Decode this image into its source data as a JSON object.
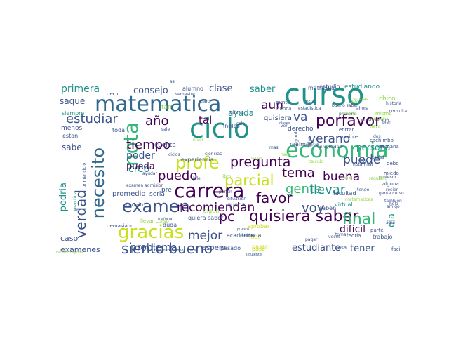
{
  "palette": {
    "dark_purple": "#440154",
    "indigo": "#3b528b",
    "blue": "#31688e",
    "teal": "#21918c",
    "green": "#35b779",
    "lime": "#90d743",
    "yellow": "#c8e020"
  },
  "words": [
    {
      "text": "curso",
      "color": "teal"
    },
    {
      "text": "matematica",
      "color": "blue"
    },
    {
      "text": "ciclo",
      "color": "teal"
    },
    {
      "text": "economia",
      "color": "green"
    },
    {
      "text": "carrera",
      "color": "dark_purple"
    },
    {
      "text": "gracias",
      "color": "yellow"
    },
    {
      "text": "nota",
      "color": "green"
    },
    {
      "text": "necesito",
      "color": "blue"
    },
    {
      "text": "examen",
      "color": "indigo"
    },
    {
      "text": "siento bueno",
      "color": "indigo"
    },
    {
      "text": "quisiera saber",
      "color": "dark_purple"
    },
    {
      "text": "profe",
      "color": "yellow"
    },
    {
      "text": "pregunta",
      "color": "dark_purple"
    },
    {
      "text": "parcial",
      "color": "yellow"
    },
    {
      "text": "porfavor",
      "color": "dark_purple"
    },
    {
      "text": "verano",
      "color": "indigo"
    },
    {
      "text": "final",
      "color": "green"
    },
    {
      "text": "verdad",
      "color": "indigo"
    },
    {
      "text": "tiempo",
      "color": "dark_purple"
    },
    {
      "text": "estudiar",
      "color": "indigo"
    },
    {
      "text": "recomiendan",
      "color": "dark_purple"
    },
    {
      "text": "gente",
      "color": "green"
    },
    {
      "text": "favor",
      "color": "dark_purple"
    },
    {
      "text": "voy",
      "color": "indigo"
    },
    {
      "text": "puedo",
      "color": "dark_purple"
    },
    {
      "text": "llevar",
      "color": "teal"
    },
    {
      "text": "tema",
      "color": "dark_purple"
    },
    {
      "text": "buena",
      "color": "dark_purple"
    },
    {
      "text": "mejor",
      "color": "indigo"
    },
    {
      "text": "pc",
      "color": "dark_purple"
    },
    {
      "text": "puede",
      "color": "indigo"
    },
    {
      "text": "año",
      "color": "dark_purple"
    },
    {
      "text": "va",
      "color": "indigo"
    },
    {
      "text": "aun",
      "color": "dark_purple"
    },
    {
      "text": "primera",
      "color": "teal"
    },
    {
      "text": "consejo",
      "color": "indigo"
    },
    {
      "text": "clase",
      "color": "indigo"
    },
    {
      "text": "saber",
      "color": "teal"
    },
    {
      "text": "persona",
      "color": "teal"
    },
    {
      "text": "ayuda",
      "color": "teal"
    },
    {
      "text": "tal",
      "color": "dark_purple"
    },
    {
      "text": "estudiante",
      "color": "indigo"
    },
    {
      "text": "problema",
      "color": "indigo"
    },
    {
      "text": "dificil",
      "color": "dark_purple"
    },
    {
      "text": "tener",
      "color": "indigo"
    },
    {
      "text": "poder",
      "color": "indigo"
    },
    {
      "text": "creo",
      "color": "teal"
    },
    {
      "text": "pueda",
      "color": "dark_purple"
    },
    {
      "text": "dia",
      "color": "teal"
    },
    {
      "text": "podria",
      "color": "teal"
    },
    {
      "text": "sabe",
      "color": "indigo"
    },
    {
      "text": "saque",
      "color": "indigo"
    },
    {
      "text": "caso",
      "color": "indigo"
    },
    {
      "text": "examenes",
      "color": "indigo"
    },
    {
      "text": "promedio",
      "color": "indigo"
    },
    {
      "text": "seria",
      "color": "indigo"
    },
    {
      "text": "quisiera",
      "color": "indigo"
    },
    {
      "text": "derecho",
      "color": "indigo"
    },
    {
      "text": "estudio",
      "color": "indigo"
    },
    {
      "text": "estudiando",
      "color": "teal"
    },
    {
      "text": "matricula",
      "color": "indigo"
    },
    {
      "text": "alumno",
      "color": "indigo"
    },
    {
      "text": "facultad",
      "color": "indigo"
    },
    {
      "text": "trabajo",
      "color": "indigo"
    },
    {
      "text": "saben",
      "color": "indigo"
    },
    {
      "text": "virtual",
      "color": "teal"
    },
    {
      "text": "cuenta",
      "color": "indigo"
    },
    {
      "text": "pasado",
      "color": "indigo"
    },
    {
      "text": "espero",
      "color": "indigo"
    },
    {
      "text": "menos",
      "color": "indigo"
    },
    {
      "text": "siempre",
      "color": "teal"
    },
    {
      "text": "estan",
      "color": "indigo"
    },
    {
      "text": "toda",
      "color": "indigo"
    },
    {
      "text": "pre",
      "color": "indigo"
    },
    {
      "text": "duda",
      "color": "indigo"
    },
    {
      "text": "mal",
      "color": "yellow"
    },
    {
      "text": "pase",
      "color": "yellow"
    },
    {
      "text": "pasar",
      "color": "yellow"
    },
    {
      "text": "aprobar",
      "color": "yellow"
    },
    {
      "text": "algun",
      "color": "lime"
    },
    {
      "text": "quiera saber",
      "color": "indigo"
    },
    {
      "text": "academia",
      "color": "indigo"
    },
    {
      "text": "deberia",
      "color": "indigo"
    },
    {
      "text": "experiencia",
      "color": "indigo"
    },
    {
      "text": "realmente",
      "color": "indigo"
    },
    {
      "text": "posible",
      "color": "indigo"
    },
    {
      "text": "ingles",
      "color": "indigo"
    },
    {
      "text": "punto",
      "color": "indigo"
    },
    {
      "text": "nunca",
      "color": "indigo"
    },
    {
      "text": "chico",
      "color": "lime"
    },
    {
      "text": "cachimbo",
      "color": "indigo"
    },
    {
      "text": "semana",
      "color": "indigo"
    },
    {
      "text": "entrar",
      "color": "indigo"
    },
    {
      "text": "miedo",
      "color": "indigo"
    },
    {
      "text": "alguna",
      "color": "indigo"
    },
    {
      "text": "debo",
      "color": "indigo"
    },
    {
      "text": "tan",
      "color": "lime"
    },
    {
      "text": "queria",
      "color": "indigo"
    },
    {
      "text": "cosa",
      "color": "indigo"
    },
    {
      "text": "demasiado",
      "color": "indigo"
    },
    {
      "text": "parte",
      "color": "indigo"
    },
    {
      "text": "examen admision",
      "color": "indigo"
    },
    {
      "text": "primer ciclo",
      "color": "indigo"
    },
    {
      "text": "practica",
      "color": "teal"
    },
    {
      "text": "ultimo",
      "color": "indigo"
    },
    {
      "text": "situacion",
      "color": "indigo"
    },
    {
      "text": "dos",
      "color": "indigo"
    },
    {
      "text": "facil",
      "color": "indigo"
    },
    {
      "text": "profesor",
      "color": "indigo"
    },
    {
      "text": "primero",
      "color": "indigo"
    },
    {
      "text": "consulta",
      "color": "indigo"
    },
    {
      "text": "horario",
      "color": "indigo"
    },
    {
      "text": "llevar curso",
      "color": "lime"
    },
    {
      "text": "mismo",
      "color": "lime"
    },
    {
      "text": "credito",
      "color": "lime"
    },
    {
      "text": "pagar",
      "color": "indigo"
    },
    {
      "text": "segunda",
      "color": "indigo"
    },
    {
      "text": "salon",
      "color": "indigo"
    },
    {
      "text": "historia",
      "color": "indigo"
    },
    {
      "text": "fisica",
      "color": "indigo"
    },
    {
      "text": "estadistica",
      "color": "indigo"
    },
    {
      "text": "universidad",
      "color": "indigo"
    },
    {
      "text": "recomendaciones libros",
      "color": "indigo"
    },
    {
      "text": "decir",
      "color": "indigo"
    },
    {
      "text": "tipo",
      "color": "indigo"
    },
    {
      "text": "hola",
      "color": "indigo"
    },
    {
      "text": "veces",
      "color": "indigo"
    },
    {
      "text": "llevo",
      "color": "lime"
    },
    {
      "text": "gustaria",
      "color": "lime"
    },
    {
      "text": "vez",
      "color": "lime"
    },
    {
      "text": "tomar",
      "color": "indigo"
    },
    {
      "text": "bien",
      "color": "indigo"
    },
    {
      "text": "asi",
      "color": "indigo"
    },
    {
      "text": "libro",
      "color": "lime"
    },
    {
      "text": "amigo",
      "color": "indigo"
    },
    {
      "text": "nivel",
      "color": "lime"
    },
    {
      "text": "solo",
      "color": "indigo"
    },
    {
      "text": "claro",
      "color": "indigo"
    },
    {
      "text": "libre",
      "color": "indigo"
    },
    {
      "text": "clases",
      "color": "indigo"
    },
    {
      "text": "siguiente",
      "color": "indigo"
    },
    {
      "text": "jale",
      "color": "indigo"
    },
    {
      "text": "ciclos",
      "color": "indigo"
    },
    {
      "text": "ayudar",
      "color": "indigo"
    },
    {
      "text": "mas",
      "color": "indigo"
    },
    {
      "text": "ver",
      "color": "indigo"
    },
    {
      "text": "sale",
      "color": "indigo"
    },
    {
      "text": "ciencias",
      "color": "indigo"
    },
    {
      "text": "ponen",
      "color": "indigo"
    },
    {
      "text": "teoria",
      "color": "indigo"
    },
    {
      "text": "hace",
      "color": "lime"
    },
    {
      "text": "bueno saber",
      "color": "indigo"
    },
    {
      "text": "tambien",
      "color": "indigo"
    },
    {
      "text": "aqui",
      "color": "indigo"
    },
    {
      "text": "nota final",
      "color": "indigo"
    },
    {
      "text": "gente curso",
      "color": "indigo"
    },
    {
      "text": "calculo",
      "color": "lime"
    },
    {
      "text": "ahora",
      "color": "indigo"
    },
    {
      "text": "recien",
      "color": "indigo"
    },
    {
      "text": "carreras",
      "color": "lime"
    },
    {
      "text": "puesto",
      "color": "indigo"
    },
    {
      "text": "cursos",
      "color": "lime"
    },
    {
      "text": "pocos",
      "color": "indigo"
    },
    {
      "text": "requisito",
      "color": "lime"
    },
    {
      "text": "buen",
      "color": "lime"
    },
    {
      "text": "tengo",
      "color": "indigo"
    },
    {
      "text": "mañana",
      "color": "indigo"
    },
    {
      "text": "matematicas",
      "color": "lime"
    },
    {
      "text": "semestre",
      "color": "indigo"
    },
    {
      "text": "curso verano",
      "color": "indigo"
    },
    {
      "text": "necesito ayuda",
      "color": "lime"
    },
    {
      "text": "caso",
      "color": "indigo"
    },
    {
      "text": "promedio ponderado",
      "color": "lime"
    }
  ]
}
